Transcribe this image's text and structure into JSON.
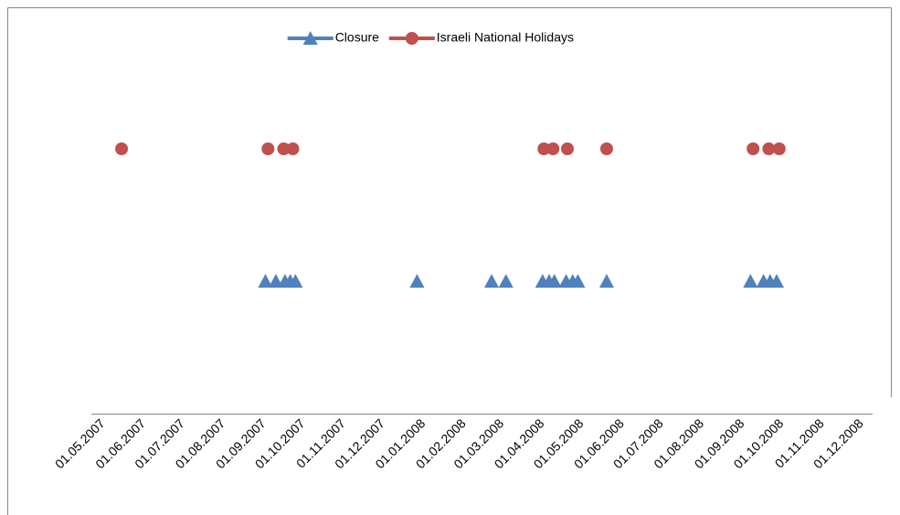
{
  "chart_data": {
    "type": "scatter",
    "xlim": [
      "01.05.2007",
      "01.12.2008"
    ],
    "xticks": [
      "01.05.2007",
      "01.06.2007",
      "01.07.2007",
      "01.08.2007",
      "01.09.2007",
      "01.10.2007",
      "01.11.2007",
      "01.12.2007",
      "01.01.2008",
      "01.02.2008",
      "01.03.2008",
      "01.04.2008",
      "01.05.2008",
      "01.06.2008",
      "01.07.2008",
      "01.08.2008",
      "01.09.2008",
      "01.10.2008",
      "01.11.2008",
      "01.12.2008"
    ],
    "ylim": [
      0,
      3
    ],
    "legend": "top",
    "series": [
      {
        "name": "Closure",
        "color": "#4f81bd",
        "marker": "triangle",
        "x": [
          "02.09.2007",
          "10.09.2007",
          "17.09.2007",
          "21.09.2007",
          "25.09.2007",
          "27.12.2007",
          "22.02.2008",
          "04.03.2008",
          "01.04.2008",
          "06.04.2008",
          "10.04.2008",
          "19.04.2008",
          "24.04.2008",
          "28.04.2008",
          "20.05.2008",
          "07.09.2008",
          "17.09.2008",
          "22.09.2008",
          "27.09.2008"
        ],
        "values": [
          1,
          1,
          1,
          1,
          1,
          1,
          1,
          1,
          1,
          1,
          1,
          1,
          1,
          1,
          1,
          1,
          1,
          1,
          1
        ]
      },
      {
        "name": "Israeli National Holidays",
        "color": "#c0504d",
        "marker": "circle",
        "x": [
          "15.05.2007",
          "04.09.2007",
          "16.09.2007",
          "23.09.2007",
          "02.04.2008",
          "09.04.2008",
          "20.04.2008",
          "20.05.2008",
          "09.09.2008",
          "21.09.2008",
          "29.09.2008"
        ],
        "values": [
          2,
          2,
          2,
          2,
          2,
          2,
          2,
          2,
          2,
          2,
          2
        ]
      }
    ]
  }
}
